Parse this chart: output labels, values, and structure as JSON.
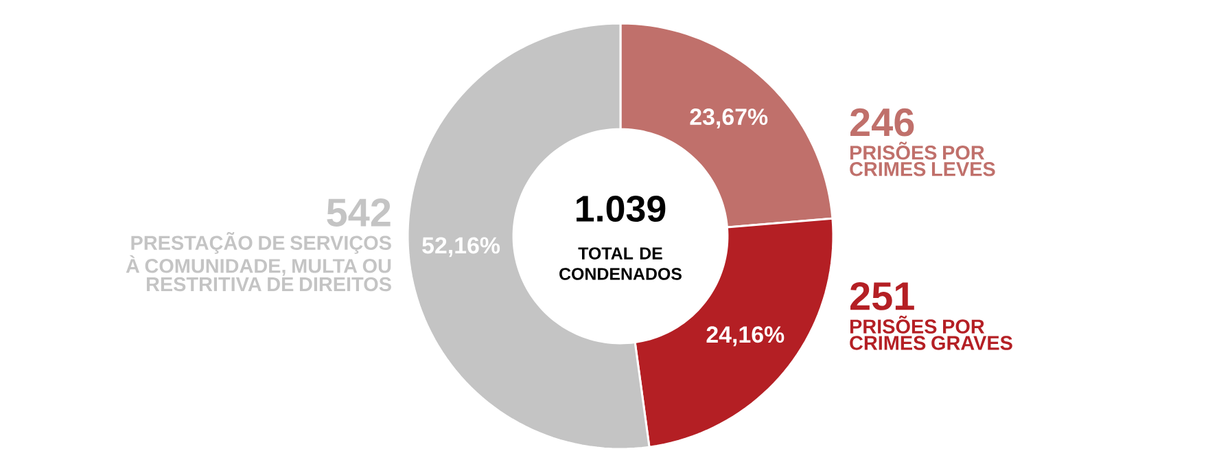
{
  "chart_data": {
    "type": "donut",
    "title": "1.039",
    "subtitle": "TOTAL DE CONDENADOS",
    "categories": [
      "PRISÕES POR CRIMES LEVES",
      "PRISÕES POR CRIMES GRAVES",
      "PRESTAÇÃO DE SERVIÇOS À COMUNIDADE, MULTA OU RESTRITIVA DE DIREITOS"
    ],
    "values": [
      23.67,
      24.16,
      52.16
    ],
    "colors": [
      "#c0706b",
      "#b41f24",
      "#c4c4c4"
    ],
    "value_labels": [
      "23,67%",
      "24,16%",
      "52,16%"
    ],
    "annotations": [
      "246",
      "251",
      "542"
    ]
  }
}
